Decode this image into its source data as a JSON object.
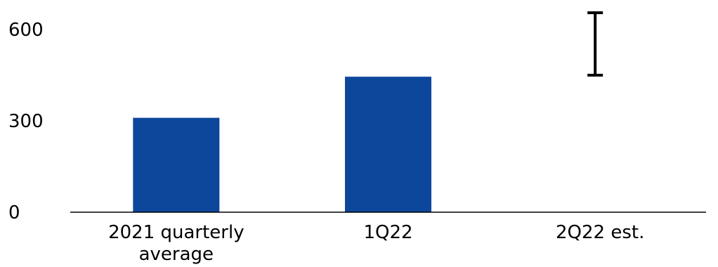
{
  "chart_data": {
    "type": "bar",
    "categories": [
      "2021 quarterly average",
      "1Q22",
      "2Q22 est."
    ],
    "category_label_lines": [
      [
        "2021 quarterly",
        "average"
      ],
      [
        "1Q22"
      ],
      [
        "2Q22 est."
      ]
    ],
    "values": [
      310,
      445,
      null
    ],
    "range_estimate": {
      "category": "2Q22 est.",
      "low": 450,
      "high": 655
    },
    "yticks": [
      0,
      300,
      600
    ],
    "ylim": [
      0,
      680
    ],
    "title": "",
    "xlabel": "",
    "ylabel": "",
    "grid": false,
    "colors": {
      "bar": "#0D479B",
      "range": "#000000",
      "axis": "#000000"
    }
  }
}
